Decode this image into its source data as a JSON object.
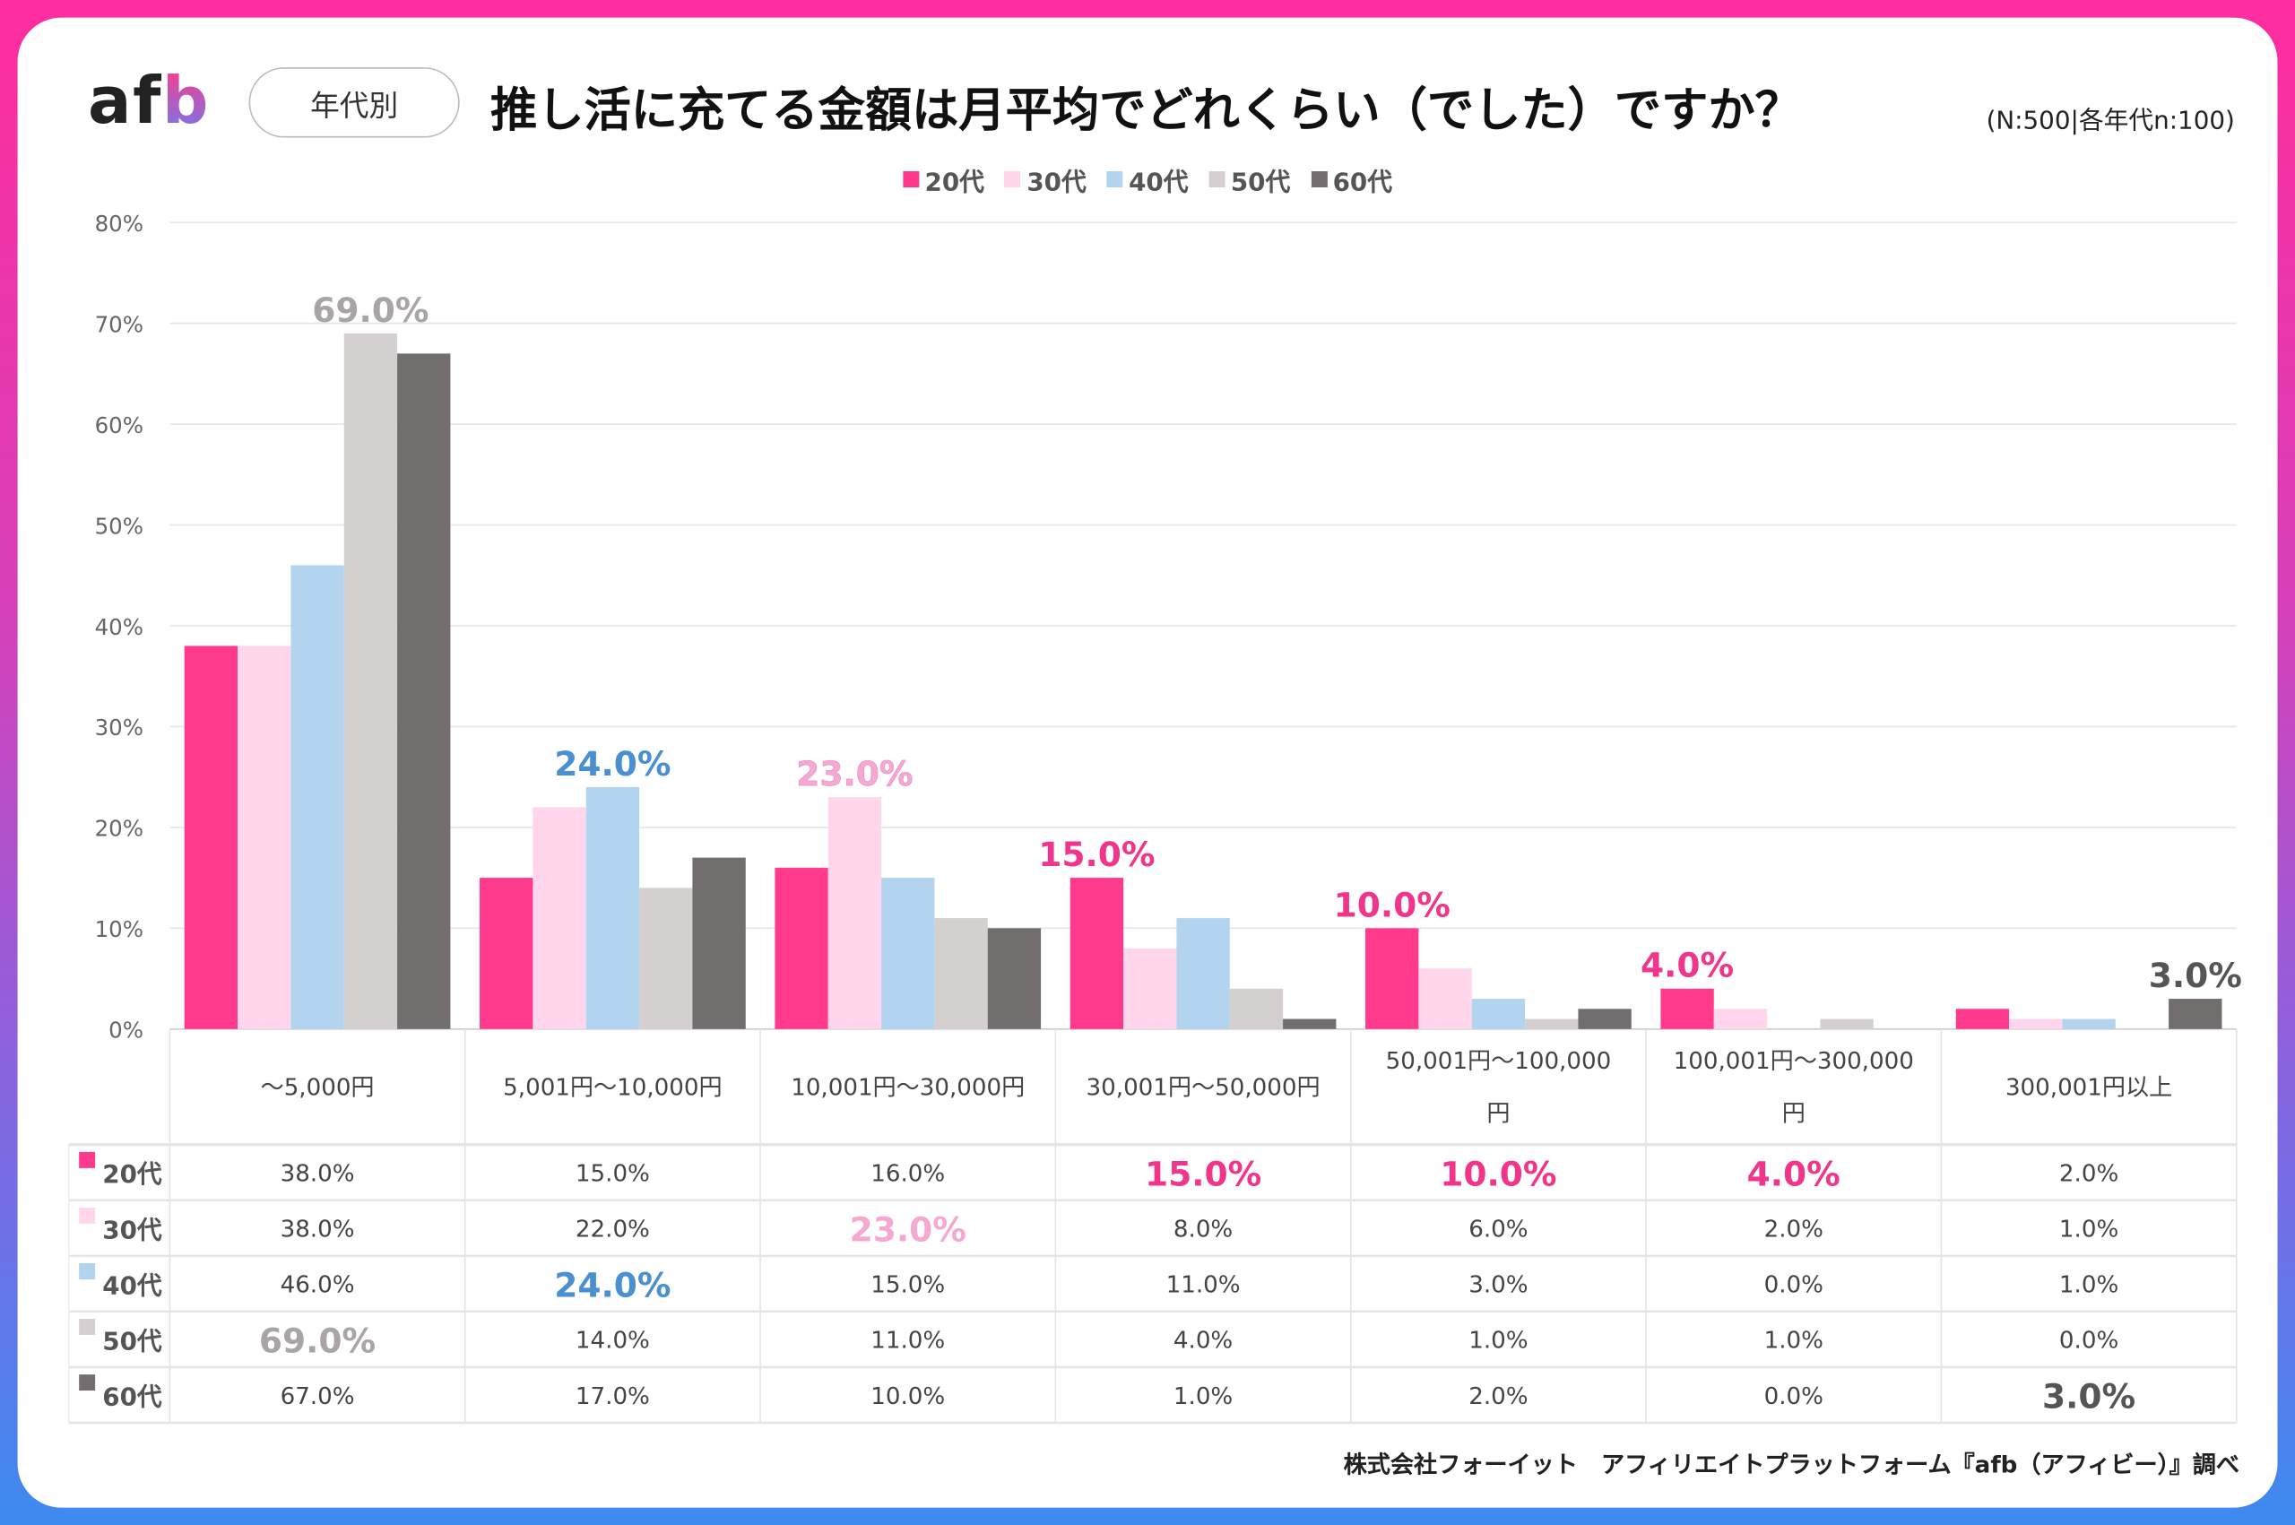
{
  "logo": "afb",
  "tag": "年代別",
  "title": "推し活に充てる金額は月平均でどれくらい（でした）ですか？",
  "sample": "(N:500|各年代n:100)",
  "footer": "株式会社フォーイット　アフィリエイトプラットフォーム『afb（アフィビー）』調べ",
  "chart_data": {
    "type": "bar",
    "title": "推し活に充てる金額は月平均でどれくらい（でした）ですか？",
    "categories": [
      "～5,000円",
      "5,001円～10,000円",
      "10,001円～30,000円",
      "30,001円～50,000円",
      "50,001円～100,000円",
      "100,001円～300,000円",
      "300,001円以上"
    ],
    "series": [
      {
        "name": "20代",
        "color": "#ff3a8c",
        "values": [
          38,
          15,
          16,
          15,
          10,
          4,
          2
        ]
      },
      {
        "name": "30代",
        "color": "#ffd6ec",
        "values": [
          38,
          22,
          23,
          8,
          6,
          2,
          1
        ]
      },
      {
        "name": "40代",
        "color": "#b3d4ee",
        "values": [
          46,
          24,
          15,
          11,
          3,
          0,
          1
        ]
      },
      {
        "name": "50代",
        "color": "#d4d0d0",
        "values": [
          69,
          14,
          11,
          4,
          1,
          1,
          0
        ]
      },
      {
        "name": "60代",
        "color": "#736e6e",
        "values": [
          67,
          17,
          10,
          1,
          2,
          0,
          3
        ]
      }
    ],
    "highlights": [
      {
        "category": 0,
        "series": 3,
        "color": "#aaa5a5"
      },
      {
        "category": 1,
        "series": 2,
        "color": "#4a8fcf"
      },
      {
        "category": 2,
        "series": 1,
        "color": "#f5a9d2"
      },
      {
        "category": 3,
        "series": 0,
        "color": "#f0368a"
      },
      {
        "category": 4,
        "series": 0,
        "color": "#f0368a"
      },
      {
        "category": 5,
        "series": 0,
        "color": "#f0368a"
      },
      {
        "category": 6,
        "series": 4,
        "color": "#555555"
      }
    ],
    "yticks": [
      "0%",
      "10%",
      "20%",
      "30%",
      "40%",
      "50%",
      "60%",
      "70%",
      "80%"
    ],
    "ylim": [
      0,
      80
    ],
    "grid": true,
    "legend": "top-center",
    "data_table": true
  }
}
